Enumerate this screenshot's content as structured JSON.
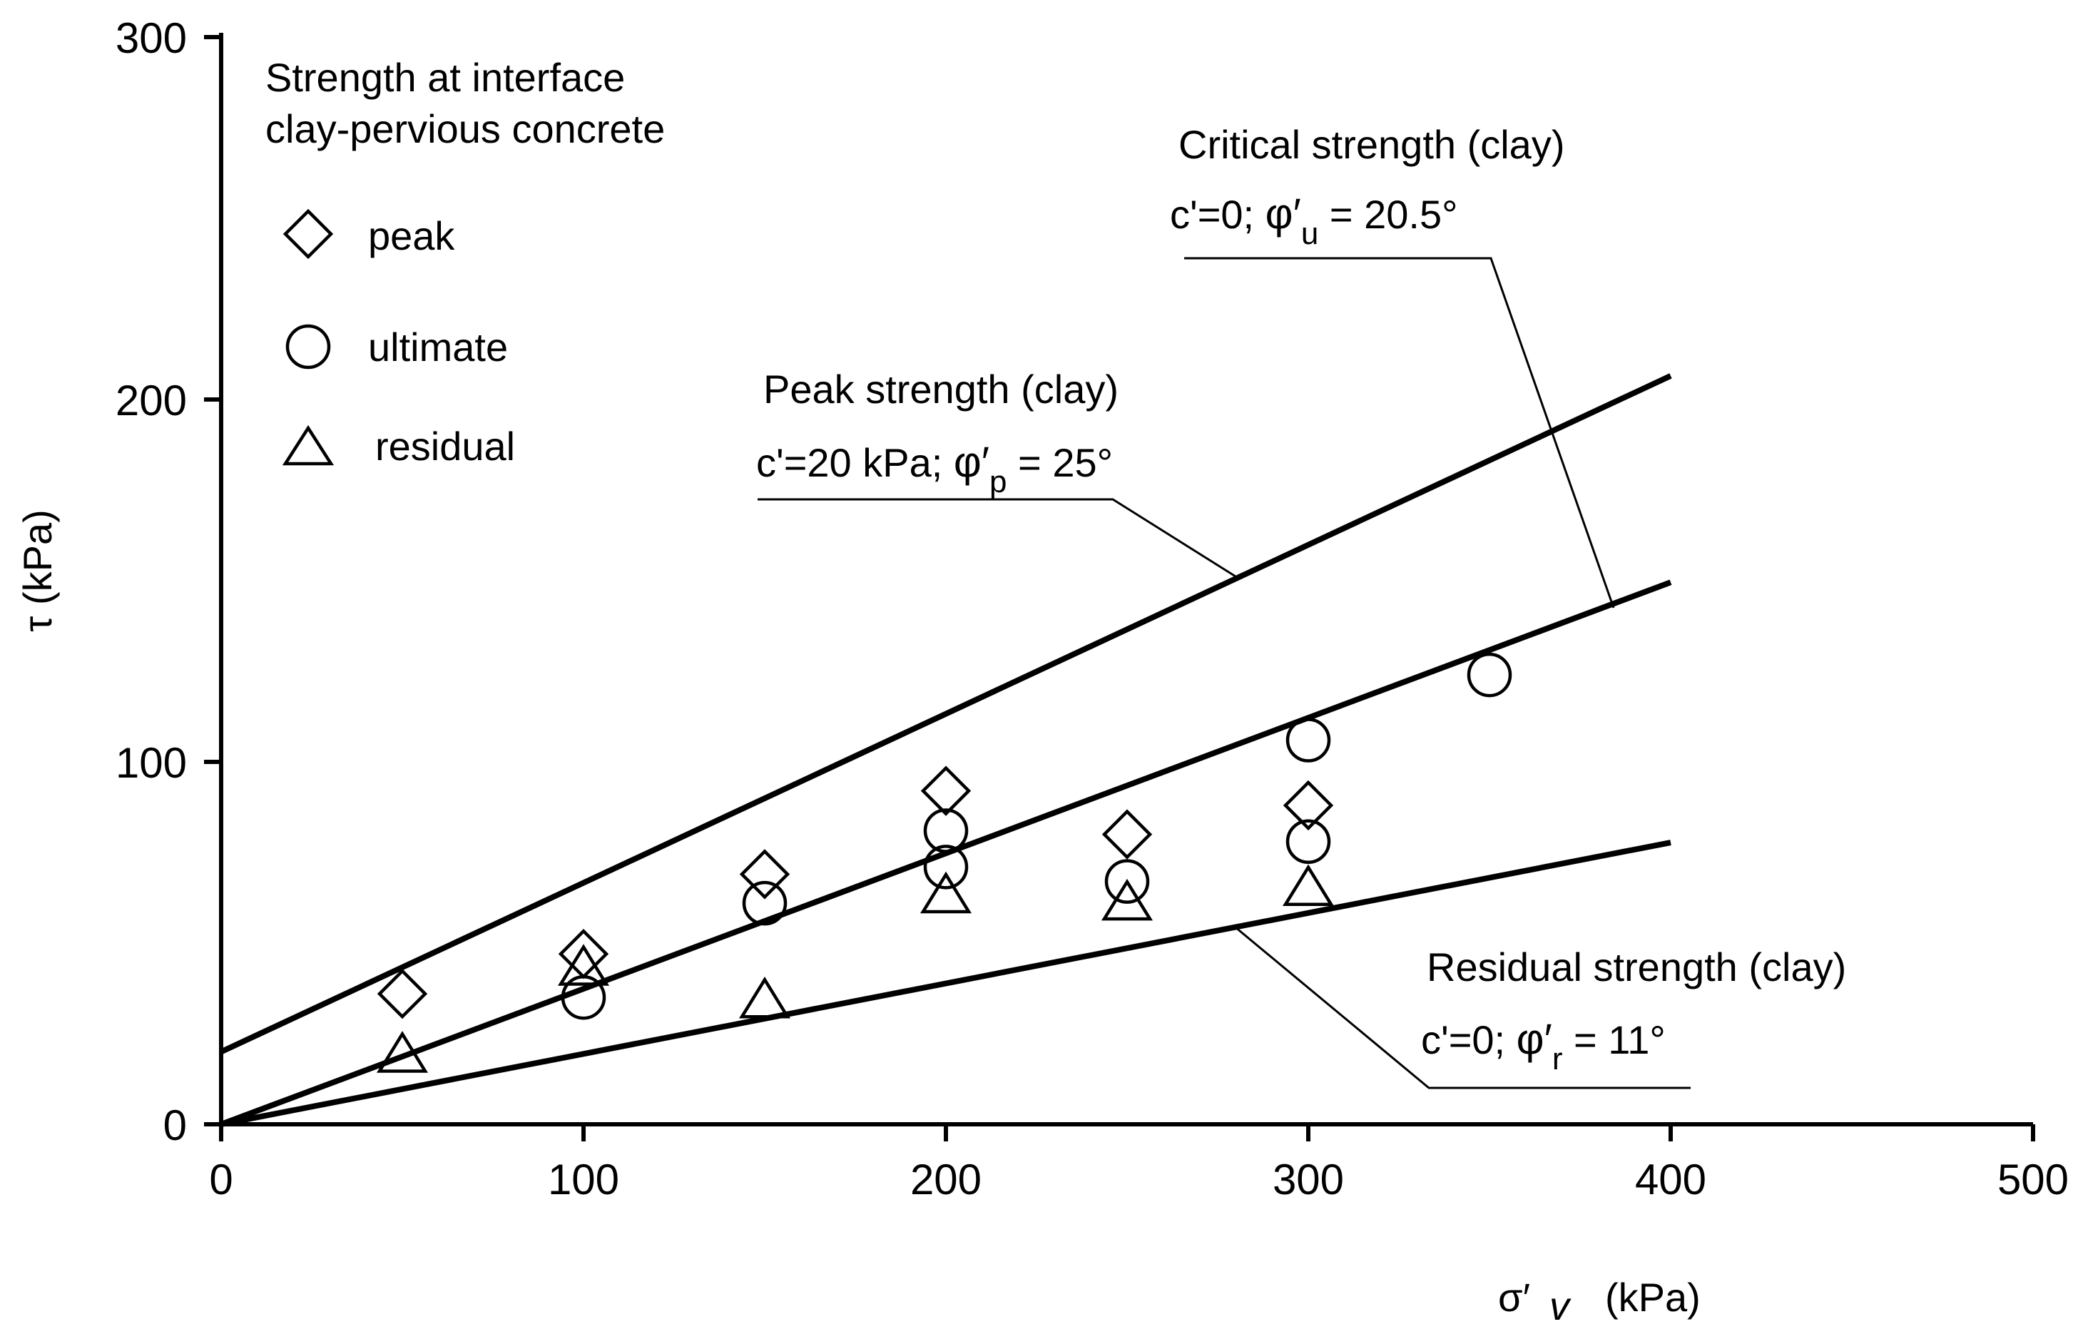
{
  "chart_data": {
    "type": "scatter",
    "title": "",
    "xlabel": "(kPa)",
    "xlabel_symbol": "σ′",
    "xlabel_sub": "v",
    "ylabel": "τ (kPa)",
    "xlim": [
      0,
      500
    ],
    "ylim": [
      0,
      300
    ],
    "xticks": [
      0,
      100,
      200,
      300,
      400,
      500
    ],
    "yticks": [
      0,
      100,
      200,
      300
    ],
    "grid": false,
    "legend": {
      "title_lines": [
        "Strength at interface",
        "clay-pervious concrete"
      ],
      "placement": "top-left",
      "entries": [
        {
          "name": "peak",
          "marker": "diamond"
        },
        {
          "name": "ultimate",
          "marker": "circle"
        },
        {
          "name": "residual",
          "marker": "triangle"
        }
      ]
    },
    "series": [
      {
        "name": "peak",
        "marker": "diamond",
        "x": [
          50,
          100,
          150,
          200,
          250,
          300
        ],
        "y": [
          36,
          47,
          69,
          92,
          80,
          88
        ]
      },
      {
        "name": "ultimate",
        "marker": "circle",
        "x": [
          100,
          150,
          200,
          200,
          250,
          300,
          300,
          350
        ],
        "y": [
          35,
          61,
          81,
          71,
          67,
          106,
          78,
          124
        ]
      },
      {
        "name": "residual",
        "marker": "triangle",
        "x": [
          50,
          100,
          150,
          200,
          250,
          300
        ],
        "y": [
          19,
          43,
          34,
          63,
          61,
          65
        ]
      }
    ],
    "lines": [
      {
        "name": "Peak strength (clay)",
        "equation_prefix": "c'=20 kPa; ",
        "phi_sub": "p",
        "phi_value": " = 25°",
        "c": 20,
        "phi_deg": 25,
        "x_range": [
          0,
          400
        ]
      },
      {
        "name": "Critical strength (clay)",
        "equation_prefix": "c'=0; ",
        "phi_sub": "u",
        "phi_value": " = 20.5°",
        "c": 0,
        "phi_deg": 20.5,
        "x_range": [
          0,
          400
        ]
      },
      {
        "name": "Residual strength (clay)",
        "equation_prefix": "c'=0; ",
        "phi_sub": "r",
        "phi_value": " = 11°",
        "c": 0,
        "phi_deg": 11,
        "x_range": [
          0,
          400
        ]
      }
    ]
  }
}
